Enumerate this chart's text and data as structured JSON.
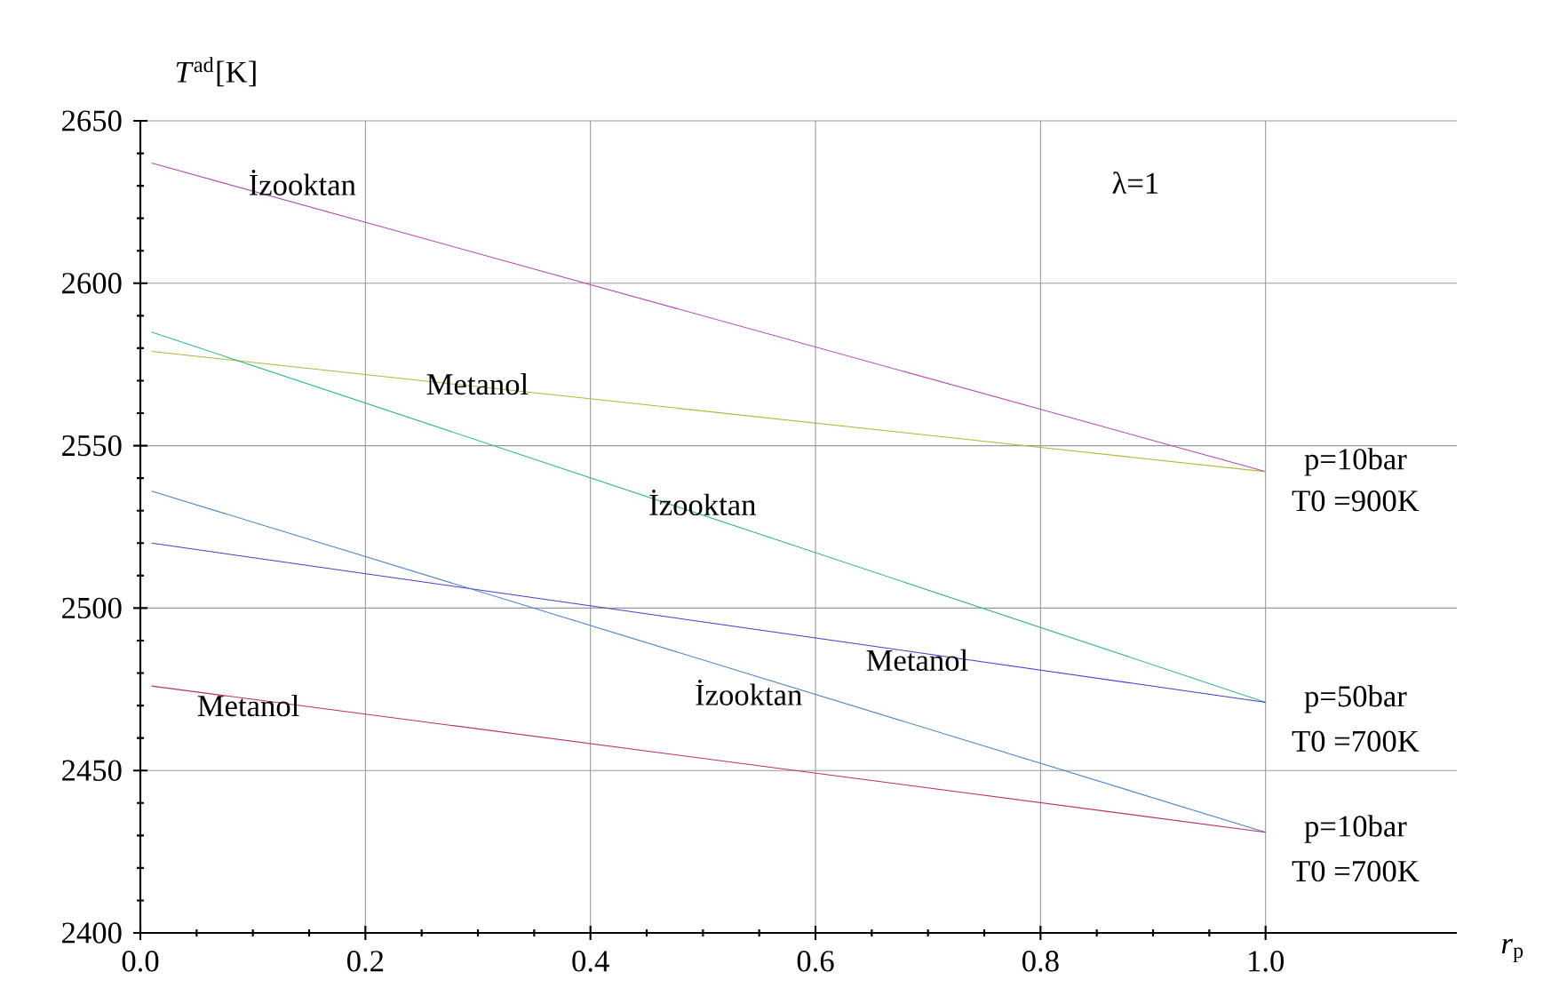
{
  "chart_data": {
    "type": "line",
    "xlabel": "*r*$_{p}$",
    "ylabel": "*T*$^{ad}$[K]",
    "xlim": [
      0,
      1.17
    ],
    "ylim": [
      2400,
      2650
    ],
    "xticks": [
      {
        "value": 0,
        "label": "0.0"
      },
      0.2,
      0.4,
      0.6,
      0.8,
      {
        "value": 1,
        "label": "1.0"
      }
    ],
    "yticks": [
      2400,
      2450,
      2500,
      2550,
      2600,
      2650
    ],
    "grid": true,
    "series": [
      {
        "color": "#b44ab4",
        "values": [
          2637,
          2542
        ]
      },
      {
        "color": "#b4b43c",
        "values": [
          2579,
          2542
        ]
      },
      {
        "color": "#3cb48c",
        "values": [
          2585,
          2471
        ]
      },
      {
        "color": "#4040c0",
        "values": [
          2520,
          2471
        ]
      },
      {
        "color": "#4a86c8",
        "values": [
          2536,
          2431
        ]
      },
      {
        "color": "#b4306e",
        "values": [
          2476,
          2431
        ]
      }
    ],
    "x": [
      0.01,
      1.0
    ],
    "annotations": [
      "İzooktan",
      "Metanol",
      "İzooktan",
      "Metanol",
      "İzooktan",
      "Metanol",
      "λ=1",
      "p=10bar",
      "T0 =900K",
      "p=50bar",
      "T0 =700K",
      "p=10bar",
      "T0 =700K"
    ]
  }
}
